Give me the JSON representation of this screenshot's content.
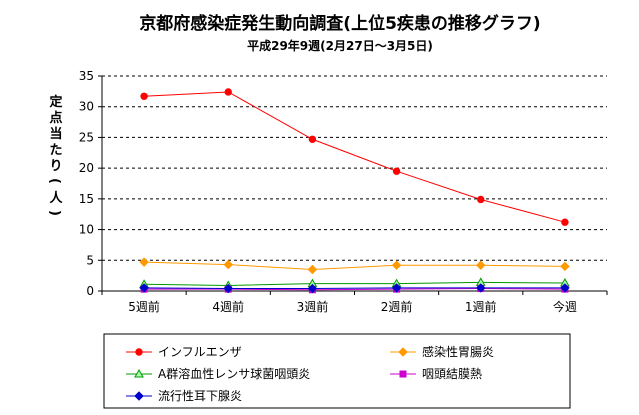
{
  "chart_data": {
    "type": "line",
    "title": "京都府感染症発生動向調査(上位5疾患の推移グラフ)",
    "subtitle": "平成29年9週(2月27日～3月5日)",
    "ylabel": "定点当たり(人)",
    "xlabel": "",
    "categories": [
      "5週前",
      "4週前",
      "3週前",
      "2週前",
      "1週前",
      "今週"
    ],
    "ylim": [
      0,
      35
    ],
    "yticks": [
      "0",
      "5",
      "10",
      "15",
      "20",
      "25",
      "30",
      "35"
    ],
    "grid": "horizontal dashed",
    "legend_position": "bottom",
    "series": [
      {
        "name": "インフルエンザ",
        "values": [
          31.7,
          32.4,
          24.7,
          19.5,
          14.9,
          11.2
        ],
        "color": "#ff0000",
        "marker": "circle"
      },
      {
        "name": "感染性胃腸炎",
        "values": [
          4.7,
          4.3,
          3.5,
          4.2,
          4.2,
          4.0
        ],
        "color": "#ff9900",
        "marker": "diamond"
      },
      {
        "name": "A群溶血性レンサ球菌咽頭炎",
        "values": [
          1.1,
          0.9,
          1.2,
          1.2,
          1.4,
          1.3
        ],
        "color": "#009900",
        "marker": "triangle"
      },
      {
        "name": "咽頭結膜熱",
        "values": [
          0.3,
          0.3,
          0.2,
          0.3,
          0.4,
          0.3
        ],
        "color": "#cc00cc",
        "marker": "square"
      },
      {
        "name": "流行性耳下腺炎",
        "values": [
          0.5,
          0.4,
          0.4,
          0.5,
          0.5,
          0.5
        ],
        "color": "#0000cc",
        "marker": "diamond"
      }
    ]
  }
}
